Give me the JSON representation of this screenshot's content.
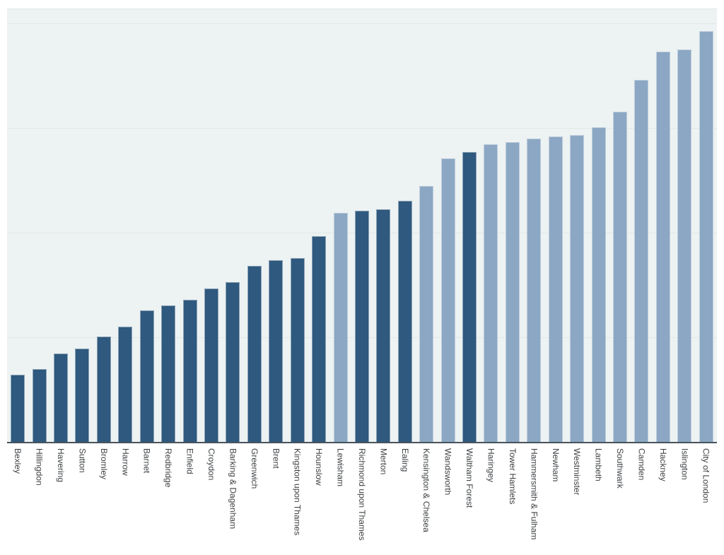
{
  "chart_data": {
    "type": "bar",
    "title": "",
    "xlabel": "",
    "ylabel": "",
    "x_tick_rotation_deg": 90,
    "grid": true,
    "y_tick_labels_visible": false,
    "gridline_values": [
      25,
      50,
      75,
      100
    ],
    "ylim": [
      0,
      103.5
    ],
    "value_scale": "relative_pct_top_gridline_100",
    "legend_position": "none",
    "colors": {
      "dark_bar": "#2F597E",
      "light_bar": "#8BA7C3",
      "plot_background": "#EDF2F2",
      "gridline": "#E2E7E8",
      "axis_line": "#4A545D",
      "label_text": "#3F4245",
      "page_background": "#FFFFFF"
    },
    "bars": [
      {
        "label": "Bexley",
        "value": 16.2,
        "group": "dark"
      },
      {
        "label": "Hillingdon",
        "value": 17.6,
        "group": "dark"
      },
      {
        "label": "Havering",
        "value": 21.3,
        "group": "dark"
      },
      {
        "label": "Sutton",
        "value": 22.5,
        "group": "dark"
      },
      {
        "label": "Bromley",
        "value": 25.3,
        "group": "dark"
      },
      {
        "label": "Harrow",
        "value": 27.7,
        "group": "dark"
      },
      {
        "label": "Barnet",
        "value": 31.6,
        "group": "dark"
      },
      {
        "label": "Redbridge",
        "value": 32.8,
        "group": "dark"
      },
      {
        "label": "Enfield",
        "value": 34.1,
        "group": "dark"
      },
      {
        "label": "Croydon",
        "value": 36.8,
        "group": "dark"
      },
      {
        "label": "Barking & Dagenham",
        "value": 38.3,
        "group": "dark"
      },
      {
        "label": "Greenwich",
        "value": 42.2,
        "group": "dark"
      },
      {
        "label": "Brent",
        "value": 43.6,
        "group": "dark"
      },
      {
        "label": "Kingston upon Thames",
        "value": 44.1,
        "group": "dark"
      },
      {
        "label": "Hounslow",
        "value": 49.3,
        "group": "dark"
      },
      {
        "label": "Lewisham",
        "value": 54.9,
        "group": "light"
      },
      {
        "label": "Richmond upon Thames",
        "value": 55.4,
        "group": "dark"
      },
      {
        "label": "Merton",
        "value": 55.7,
        "group": "dark"
      },
      {
        "label": "Ealing",
        "value": 57.8,
        "group": "dark"
      },
      {
        "label": "Kensington & Chelsea",
        "value": 61.3,
        "group": "light"
      },
      {
        "label": "Wandsworth",
        "value": 67.9,
        "group": "light"
      },
      {
        "label": "Waltham Forest",
        "value": 69.4,
        "group": "dark"
      },
      {
        "label": "Haringey",
        "value": 71.3,
        "group": "light"
      },
      {
        "label": "Tower Hamlets",
        "value": 71.8,
        "group": "light"
      },
      {
        "label": "Hammersmith & Fulham",
        "value": 72.6,
        "group": "light"
      },
      {
        "label": "Newham",
        "value": 73.1,
        "group": "light"
      },
      {
        "label": "Westminster",
        "value": 73.5,
        "group": "light"
      },
      {
        "label": "Lambeth",
        "value": 75.3,
        "group": "light"
      },
      {
        "label": "Southwark",
        "value": 79.1,
        "group": "light"
      },
      {
        "label": "Camden",
        "value": 86.7,
        "group": "light"
      },
      {
        "label": "Hackney",
        "value": 93.4,
        "group": "light"
      },
      {
        "label": "Islington",
        "value": 93.9,
        "group": "light"
      },
      {
        "label": "City of London",
        "value": 98.3,
        "group": "light"
      }
    ]
  }
}
